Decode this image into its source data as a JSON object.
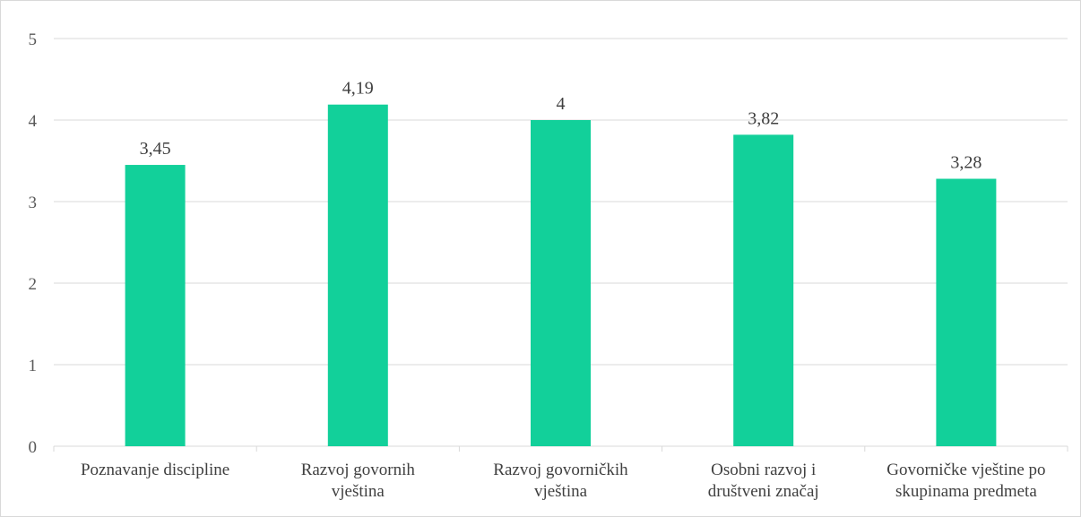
{
  "chart_data": {
    "type": "bar",
    "categories": [
      [
        "Poznavanje discipline"
      ],
      [
        "Razvoj govornih",
        "vještina"
      ],
      [
        "Razvoj govorničkih",
        "vještina"
      ],
      [
        "Osobni razvoj i",
        "društveni značaj"
      ],
      [
        "Govorničke vještine po",
        "skupinama predmeta"
      ]
    ],
    "values": [
      3.45,
      4.19,
      4,
      3.82,
      3.28
    ],
    "data_labels": [
      "3,45",
      "4,19",
      "4",
      "3,82",
      "3,28"
    ],
    "yticks": [
      "0",
      "1",
      "2",
      "3",
      "4",
      "5"
    ],
    "ylim": [
      0,
      5
    ],
    "grid": true,
    "legend": "none",
    "bar_color": "#12d09a",
    "grid_color": "#d9d9d9",
    "title": "",
    "xlabel": "",
    "ylabel": ""
  }
}
